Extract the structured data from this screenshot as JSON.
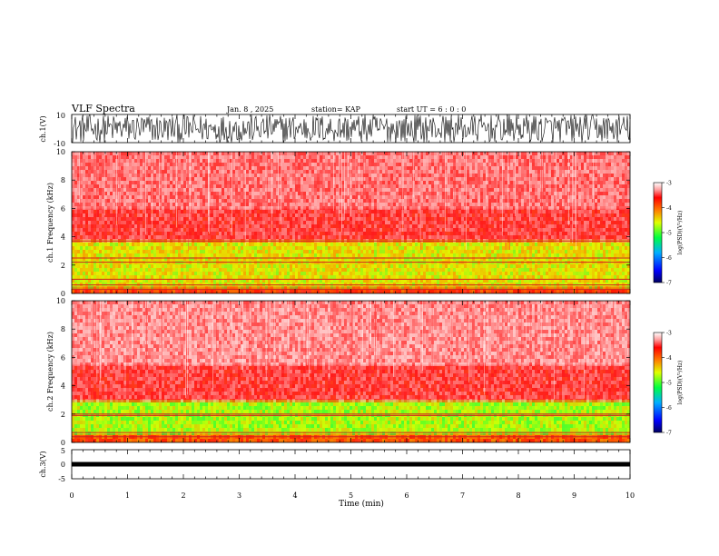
{
  "header": {
    "title": "VLF Spectra",
    "date": "Jan. 8 , 2025",
    "station": "station= KAP",
    "start": "start UT =  6 : 0 : 0"
  },
  "chart_data": [
    {
      "type": "line",
      "name": "ch1-waveform",
      "ylabel": "ch.1(V)",
      "ylim": [
        -10,
        10
      ],
      "y_ticks": [
        "10",
        "-10"
      ],
      "description_values": "dense noise between about -10 and 10 V"
    },
    {
      "type": "heatmap",
      "name": "ch1-spectrogram",
      "ylabel": "ch.1 Frequency (kHz)",
      "ylim": [
        0,
        10
      ],
      "y_ticks": [
        "0",
        "2",
        "4",
        "6",
        "8",
        "10"
      ],
      "colorbar": {
        "label": "log(PSD)(V²/Hz)",
        "range": [
          -7,
          -3
        ],
        "ticks": [
          "-3",
          "-4",
          "-5",
          "-6",
          "-7"
        ]
      },
      "bands": [
        {
          "f_min": 0,
          "f_max": 0.5,
          "level": -4.2
        },
        {
          "f_min": 0.5,
          "f_max": 3.8,
          "level": -4.9
        },
        {
          "f_min": 3.8,
          "f_max": 6,
          "level": -3.8
        },
        {
          "f_min": 6,
          "f_max": 10,
          "level": -3.6
        }
      ],
      "lines_khz": [
        0.3,
        0.6,
        1.0,
        2.2,
        2.5,
        3.7
      ]
    },
    {
      "type": "heatmap",
      "name": "ch2-spectrogram",
      "ylabel": "ch.2 Frequency (kHz)",
      "ylim": [
        0,
        10
      ],
      "y_ticks": [
        "0",
        "2",
        "4",
        "6",
        "8",
        "10"
      ],
      "colorbar": {
        "label": "log(PSD)(V²/Hz)",
        "range": [
          -7,
          -3
        ],
        "ticks": [
          "-3",
          "-4",
          "-5",
          "-6",
          "-7"
        ]
      },
      "bands": [
        {
          "f_min": 0,
          "f_max": 0.6,
          "level": -4.3
        },
        {
          "f_min": 0.6,
          "f_max": 3.0,
          "level": -5.1
        },
        {
          "f_min": 3.0,
          "f_max": 5.5,
          "level": -3.8
        },
        {
          "f_min": 5.5,
          "f_max": 10,
          "level": -3.5
        }
      ],
      "lines_khz": [
        0.4,
        0.7,
        1.9,
        2.0
      ]
    },
    {
      "type": "line",
      "name": "ch3-waveform",
      "ylabel": "ch.3(V)",
      "ylim": [
        -5,
        5
      ],
      "y_ticks": [
        "5",
        "0",
        "-5"
      ],
      "value": 0
    }
  ],
  "x_axis": {
    "label": "Time (min)",
    "range": [
      0,
      10
    ],
    "ticks": [
      "0",
      "1",
      "2",
      "3",
      "4",
      "5",
      "6",
      "7",
      "8",
      "9",
      "10"
    ]
  }
}
